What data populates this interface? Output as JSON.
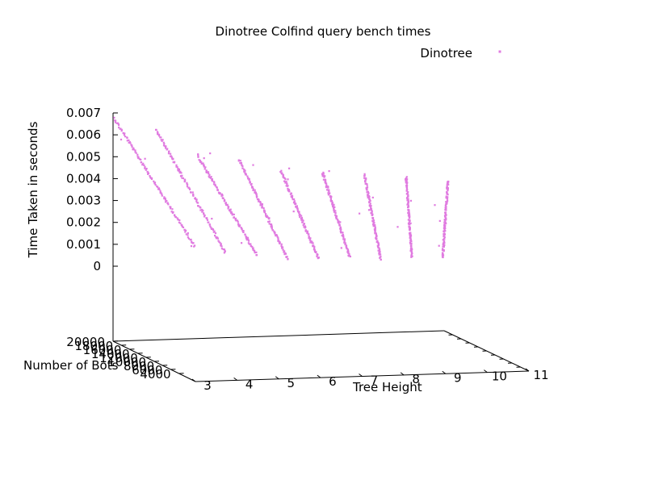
{
  "chart_data": {
    "type": "scatter",
    "title": "Dinotree Colfind query bench times",
    "xlabel": "Tree Height",
    "ylabel": "Number of Bots",
    "zlabel": "Time Taken in seconds",
    "x_ticks": [
      "3",
      "4",
      "5",
      "6",
      "7",
      "8",
      "9",
      "10",
      "11"
    ],
    "y_ticks": [
      "4000",
      "6000",
      "8000",
      "10000",
      "12000",
      "14000",
      "16000",
      "18000",
      "20000"
    ],
    "z_ticks": [
      "0",
      "0.001",
      "0.002",
      "0.003",
      "0.004",
      "0.005",
      "0.006",
      "0.007"
    ],
    "xlim": [
      3,
      11
    ],
    "ylim": [
      0,
      20000
    ],
    "zlim": [
      0,
      0.007
    ],
    "legend_position": "top-right",
    "grid": false,
    "series": [
      {
        "name": "Dinotree",
        "color": "#e07be0",
        "point_groups": [
          {
            "tree_height": 3,
            "bots_max": 20000,
            "bots_min": 1000,
            "time_max": 0.0068,
            "time_min": 0.0014
          },
          {
            "tree_height": 4,
            "bots_max": 20000,
            "bots_min": 1000,
            "time_max": 0.0063,
            "time_min": 0.0011
          },
          {
            "tree_height": 5,
            "bots_max": 20000,
            "bots_min": 1000,
            "time_max": 0.0051,
            "time_min": 0.001
          },
          {
            "tree_height": 6,
            "bots_max": 20000,
            "bots_min": 1000,
            "time_max": 0.0049,
            "time_min": 0.0008
          },
          {
            "tree_height": 7,
            "bots_max": 20000,
            "bots_min": 1000,
            "time_max": 0.0044,
            "time_min": 0.0008
          },
          {
            "tree_height": 8,
            "bots_max": 20000,
            "bots_min": 1000,
            "time_max": 0.0043,
            "time_min": 0.0009
          },
          {
            "tree_height": 9,
            "bots_max": 20000,
            "bots_min": 1000,
            "time_max": 0.0042,
            "time_min": 0.0008
          },
          {
            "tree_height": 10,
            "bots_max": 20000,
            "bots_min": 1000,
            "time_max": 0.0041,
            "time_min": 0.0009
          },
          {
            "tree_height": 11,
            "bots_max": 20000,
            "bots_min": 1000,
            "time_max": 0.0039,
            "time_min": 0.0009
          }
        ]
      }
    ]
  }
}
